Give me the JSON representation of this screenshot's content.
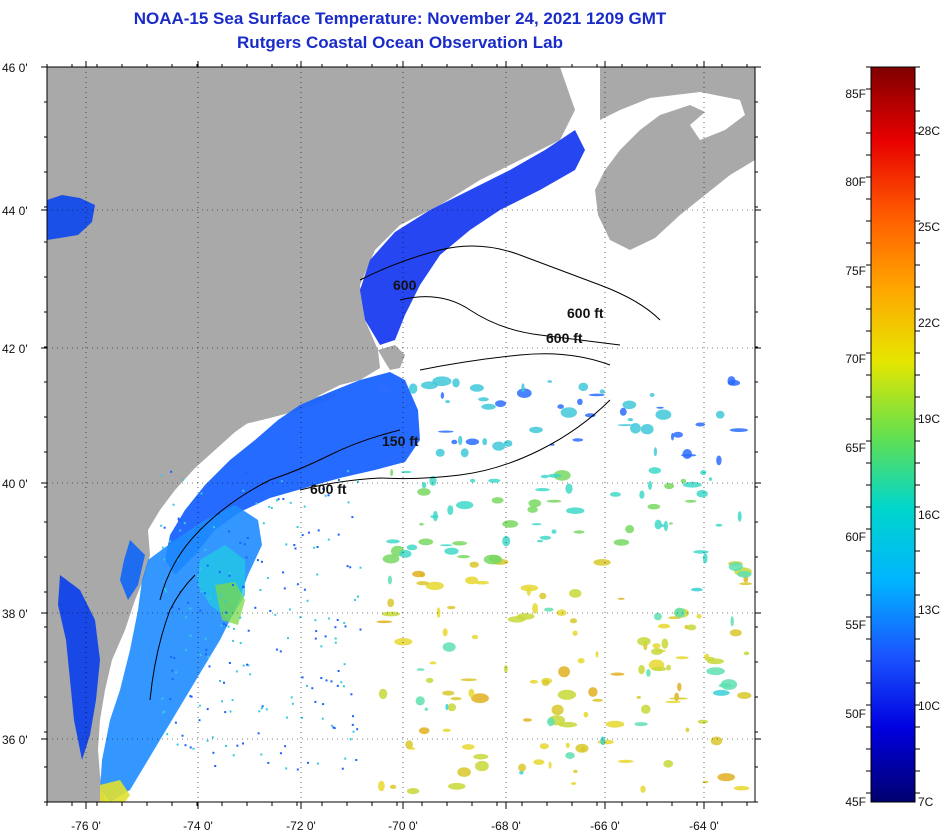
{
  "header": {
    "title_line1": "NOAA-15 Sea Surface Temperature:  November 24, 2021 1209 GMT",
    "title_line2": "Rutgers Coastal Ocean Observation Lab"
  },
  "map": {
    "lat_labels": [
      "46 0'",
      "44 0'",
      "42 0'",
      "40 0'",
      "38 0'",
      "36 0'"
    ],
    "lon_labels": [
      "-76 0'",
      "-74 0'",
      "-72 0'",
      "-70 0'",
      "-68 0'",
      "-66 0'",
      "-64 0'"
    ],
    "contour_labels": [
      "600",
      "600 ft",
      "600 ft",
      "150 ft",
      "600 ft"
    ],
    "colors": {
      "land": "#a9a9a9",
      "ocean_nodata": "#ffffff",
      "contour": "#000000"
    }
  },
  "colorbar": {
    "f_labels": [
      "85F",
      "80F",
      "75F",
      "70F",
      "65F",
      "60F",
      "55F",
      "50F",
      "45F"
    ],
    "c_labels": [
      "28C",
      "25C",
      "22C",
      "19C",
      "16C",
      "13C",
      "10C",
      "7C"
    ],
    "gradient": [
      "#7f0000",
      "#e80000",
      "#ff5a00",
      "#ffa500",
      "#e6e600",
      "#66e04d",
      "#00d6cc",
      "#00b4ff",
      "#1a55ff",
      "#0000e0",
      "#00006e"
    ]
  }
}
